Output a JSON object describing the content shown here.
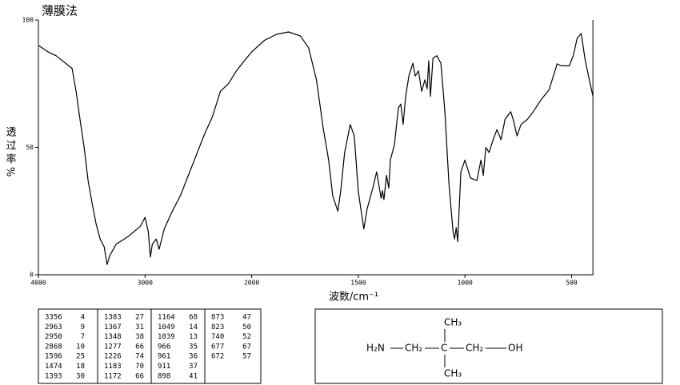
{
  "chart_data": {
    "type": "line",
    "title": "薄膜法",
    "y_label": "透过率%",
    "x_label": "波数/cm⁻¹",
    "xlim": [
      4000,
      400
    ],
    "xticks": [
      4000,
      3000,
      2000,
      1500,
      1000,
      500
    ],
    "ylim": [
      0,
      100
    ],
    "yticks": [
      0,
      50,
      100
    ],
    "color": "#000000",
    "x": [
      4000,
      3910,
      3835,
      3684,
      3647,
      3610,
      3571,
      3534,
      3496,
      3459,
      3421,
      3383,
      3356,
      3331,
      3271,
      3158,
      3045,
      3000,
      2970,
      2950,
      2932,
      2895,
      2868,
      2820,
      2744,
      2669,
      2594,
      2519,
      2444,
      2368,
      2293,
      2218,
      2143,
      2068,
      2000,
      1940,
      1883,
      1827,
      1771,
      1733,
      1696,
      1665,
      1639,
      1620,
      1596,
      1583,
      1564,
      1538,
      1519,
      1500,
      1474,
      1459,
      1432,
      1414,
      1393,
      1387,
      1380,
      1368,
      1357,
      1350,
      1331,
      1312,
      1301,
      1290,
      1278,
      1263,
      1244,
      1233,
      1218,
      1203,
      1188,
      1177,
      1170,
      1162,
      1150,
      1132,
      1113,
      1094,
      1075,
      1056,
      1049,
      1041,
      1034,
      1019,
      1000,
      974,
      944,
      925,
      914,
      902,
      887,
      868,
      850,
      831,
      812,
      786,
      774,
      756,
      737,
      707,
      680,
      643,
      605,
      568,
      549,
      511,
      492,
      474,
      455,
      436,
      400
    ],
    "values": [
      90,
      87.5,
      86,
      81,
      72,
      61,
      50,
      37,
      28,
      20,
      14,
      11,
      4,
      7.5,
      12,
      15,
      19,
      22.5,
      17,
      7,
      12,
      14,
      10,
      18,
      25,
      31,
      39,
      47,
      55,
      62,
      72,
      75,
      80,
      84,
      87.5,
      92,
      94.4,
      95.3,
      93.7,
      89,
      76.5,
      57.7,
      45,
      31,
      25,
      32.6,
      48,
      59,
      54.5,
      32.6,
      18,
      25.7,
      34,
      40.4,
      30,
      33,
      29.5,
      39,
      34,
      45,
      51,
      65.5,
      67,
      59,
      70,
      78,
      83,
      78,
      80,
      72,
      76.5,
      73,
      84,
      70,
      85,
      86,
      83,
      64,
      35.7,
      17,
      14,
      18.5,
      13,
      40.4,
      45,
      38,
      37,
      45,
      39,
      50,
      48,
      53,
      57,
      53,
      61,
      64,
      61,
      54.5,
      59,
      61,
      64,
      68.7,
      72.7,
      82.8,
      82,
      82,
      86,
      92.8,
      94.7,
      84,
      70
    ]
  },
  "peak_table": [
    [
      [
        3356,
        4
      ],
      [
        2963,
        9
      ],
      [
        2950,
        7
      ],
      [
        2868,
        10
      ],
      [
        1596,
        25
      ],
      [
        1474,
        18
      ],
      [
        1393,
        30
      ]
    ],
    [
      [
        1383,
        27
      ],
      [
        1367,
        31
      ],
      [
        1348,
        38
      ],
      [
        1277,
        66
      ],
      [
        1226,
        74
      ],
      [
        1183,
        70
      ],
      [
        1172,
        66
      ]
    ],
    [
      [
        1164,
        68
      ],
      [
        1049,
        14
      ],
      [
        1039,
        13
      ],
      [
        966,
        35
      ],
      [
        961,
        36
      ],
      [
        911,
        37
      ],
      [
        898,
        41
      ]
    ],
    [
      [
        873,
        47
      ],
      [
        823,
        50
      ],
      [
        740,
        52
      ],
      [
        677,
        67
      ],
      [
        672,
        57
      ]
    ]
  ],
  "structure": {
    "amine": "H₂N",
    "ch2_left": "CH₂",
    "carbon": "C",
    "ch2_right": "CH₂",
    "hydroxyl": "OH",
    "methyl_top": "CH₃",
    "methyl_bottom": "CH₃"
  }
}
